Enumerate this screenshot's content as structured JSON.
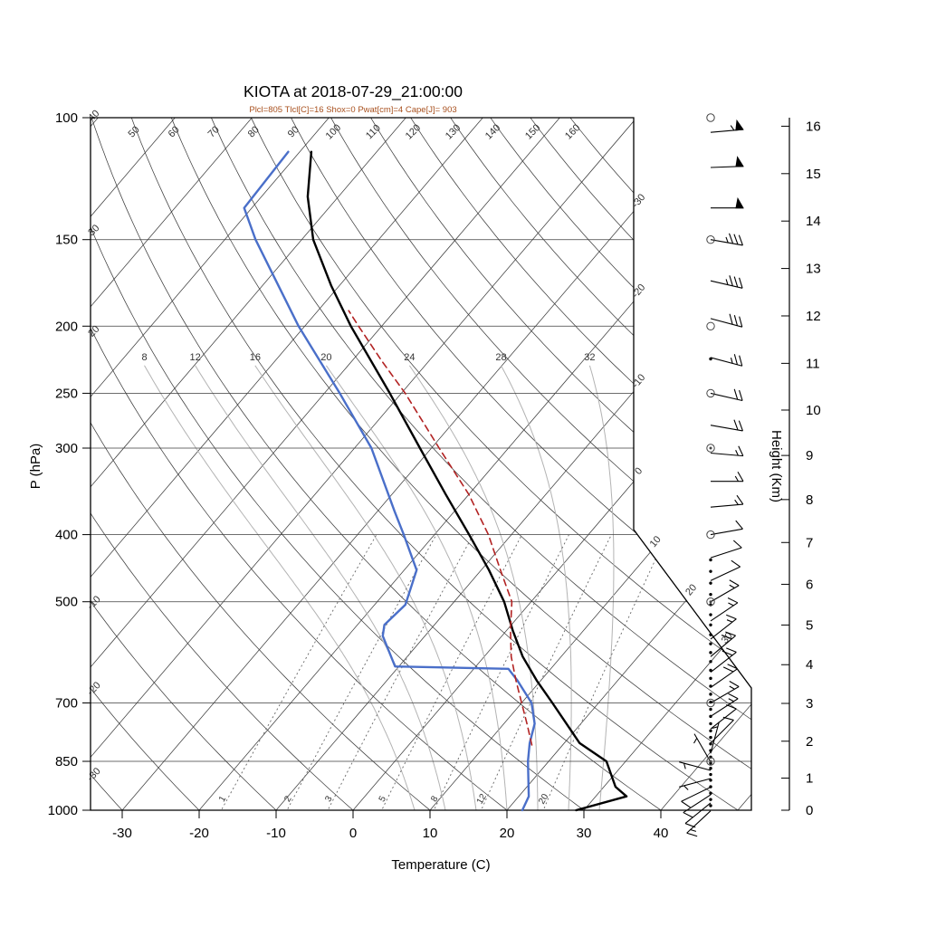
{
  "title": "KIOTA at 2018-07-29_21:00:00",
  "subtitle": "Plcl=805 Tlcl[C]=16 Shox=0 Pwat[cm]=4 Cape[J]= 903",
  "axes": {
    "pressure_label": "P (hPa)",
    "pressure_ticks": [
      100,
      150,
      200,
      250,
      300,
      400,
      500,
      700,
      850,
      1000
    ],
    "temperature_label": "Temperature (C)",
    "temperature_ticks": [
      -30,
      -20,
      -10,
      0,
      10,
      20,
      30,
      40
    ],
    "height_label": "Height (Km)",
    "height_ticks": [
      0,
      1,
      2,
      3,
      4,
      5,
      6,
      7,
      8,
      9,
      10,
      11,
      12,
      13,
      14,
      15,
      16
    ]
  },
  "background": {
    "isotherms_c": {
      "min": -110,
      "max": 50,
      "step": 10,
      "right_edge_labels": [
        -30,
        -20,
        -10,
        0,
        10,
        20,
        30
      ]
    },
    "dry_adiabats_c": {
      "min": -30,
      "max": 160,
      "step": 10,
      "top_labels": [
        50,
        60,
        70,
        80,
        90,
        100,
        110,
        120,
        130,
        140,
        150,
        160
      ],
      "left_labels": [
        40,
        30,
        20,
        -10,
        -20,
        -30
      ]
    },
    "moist_adiabats_c": [
      8,
      12,
      16,
      20,
      24,
      28,
      32
    ],
    "mixing_ratio_gkg": [
      1,
      2,
      3,
      5,
      8,
      12,
      20
    ]
  },
  "chart_data": {
    "type": "line",
    "variant": "skew-t-log-p-sounding",
    "station": "KIOTA",
    "datetime": "2018-07-29_21:00:00",
    "title": "KIOTA at 2018-07-29_21:00:00",
    "xlabel": "Temperature (C)",
    "ylabel": "P (hPa)",
    "y2label": "Height (Km)",
    "x_range_c": [
      -35,
      50
    ],
    "pressure_range_hpa": [
      100,
      1000
    ],
    "indices": {
      "Plcl_hPa": 805,
      "Tlcl_C": 16,
      "Shox": 0,
      "Pwat_cm": 4,
      "Cape_J": 903
    },
    "series": [
      {
        "name": "temperature",
        "color": "#000000",
        "style": "solid",
        "points_p_t": [
          [
            1000,
            29
          ],
          [
            955,
            34
          ],
          [
            925,
            31.5
          ],
          [
            850,
            27.5
          ],
          [
            800,
            22
          ],
          [
            700,
            14
          ],
          [
            650,
            9.5
          ],
          [
            600,
            5
          ],
          [
            550,
            0.8
          ],
          [
            500,
            -3.5
          ],
          [
            450,
            -9
          ],
          [
            400,
            -15.5
          ],
          [
            350,
            -23
          ],
          [
            300,
            -31.5
          ],
          [
            250,
            -41.5
          ],
          [
            200,
            -54
          ],
          [
            175,
            -61
          ],
          [
            150,
            -68.5
          ],
          [
            130,
            -74
          ],
          [
            112,
            -78.5
          ]
        ]
      },
      {
        "name": "dewpoint",
        "color": "#4a6fc9",
        "style": "solid",
        "points_p_t": [
          [
            1000,
            22
          ],
          [
            955,
            21.3
          ],
          [
            850,
            17.3
          ],
          [
            800,
            15.5
          ],
          [
            750,
            14
          ],
          [
            700,
            11.3
          ],
          [
            650,
            7
          ],
          [
            625,
            4.5
          ],
          [
            620,
            -10.5
          ],
          [
            560,
            -15.5
          ],
          [
            540,
            -16.5
          ],
          [
            505,
            -16
          ],
          [
            470,
            -17.5
          ],
          [
            450,
            -18.4
          ],
          [
            400,
            -24
          ],
          [
            370,
            -27.8
          ],
          [
            300,
            -37.8
          ],
          [
            250,
            -48
          ],
          [
            200,
            -60.8
          ],
          [
            150,
            -76
          ],
          [
            135,
            -81
          ],
          [
            112,
            -81.5
          ]
        ]
      },
      {
        "name": "parcel",
        "color": "#b22222",
        "style": "dashed",
        "points_p_t": [
          [
            805,
            16
          ],
          [
            750,
            13
          ],
          [
            700,
            10
          ],
          [
            650,
            6.8
          ],
          [
            600,
            3.5
          ],
          [
            550,
            0.5
          ],
          [
            500,
            -2.5
          ],
          [
            450,
            -7.5
          ],
          [
            400,
            -13
          ],
          [
            350,
            -20
          ],
          [
            300,
            -29
          ],
          [
            250,
            -39.5
          ],
          [
            225,
            -46
          ],
          [
            200,
            -53
          ],
          [
            190,
            -56
          ]
        ]
      }
    ],
    "wind_barbs": [
      [
        105,
        55,
        85
      ],
      [
        118,
        50,
        88
      ],
      [
        135,
        50,
        90
      ],
      [
        150,
        35,
        100
      ],
      [
        172,
        35,
        103
      ],
      [
        195,
        30,
        105
      ],
      [
        222,
        25,
        105
      ],
      [
        250,
        20,
        103
      ],
      [
        278,
        20,
        100
      ],
      [
        305,
        15,
        95
      ],
      [
        335,
        15,
        90
      ],
      [
        365,
        15,
        85
      ],
      [
        400,
        10,
        80
      ],
      [
        432,
        10,
        72
      ],
      [
        466,
        10,
        65
      ],
      [
        500,
        15,
        60
      ],
      [
        533,
        15,
        56
      ],
      [
        566,
        15,
        52
      ],
      [
        600,
        20,
        50
      ],
      [
        632,
        20,
        52
      ],
      [
        665,
        20,
        55
      ],
      [
        700,
        15,
        60
      ],
      [
        732,
        15,
        57
      ],
      [
        763,
        10,
        52
      ],
      [
        800,
        10,
        45
      ],
      [
        828,
        5,
        15
      ],
      [
        852,
        5,
        330
      ],
      [
        876,
        5,
        285
      ],
      [
        900,
        5,
        255
      ],
      [
        926,
        10,
        244
      ],
      [
        950,
        10,
        237
      ],
      [
        976,
        10,
        231
      ],
      [
        1002,
        15,
        227
      ]
    ],
    "level_markers": {
      "mandatory_circle_hpa": [
        100,
        150,
        200,
        250,
        300,
        400,
        500,
        700,
        850
      ],
      "circle_dot_hpa": [
        300,
        500,
        850
      ],
      "significant_dot_hpa": [
        223,
        435,
        452,
        470,
        488,
        505,
        522,
        540,
        558,
        575,
        592,
        610,
        628,
        645,
        662,
        680,
        698,
        715,
        732,
        750,
        768,
        785,
        802,
        820,
        838,
        855,
        870,
        888,
        905,
        925,
        945,
        965,
        985
      ]
    }
  }
}
